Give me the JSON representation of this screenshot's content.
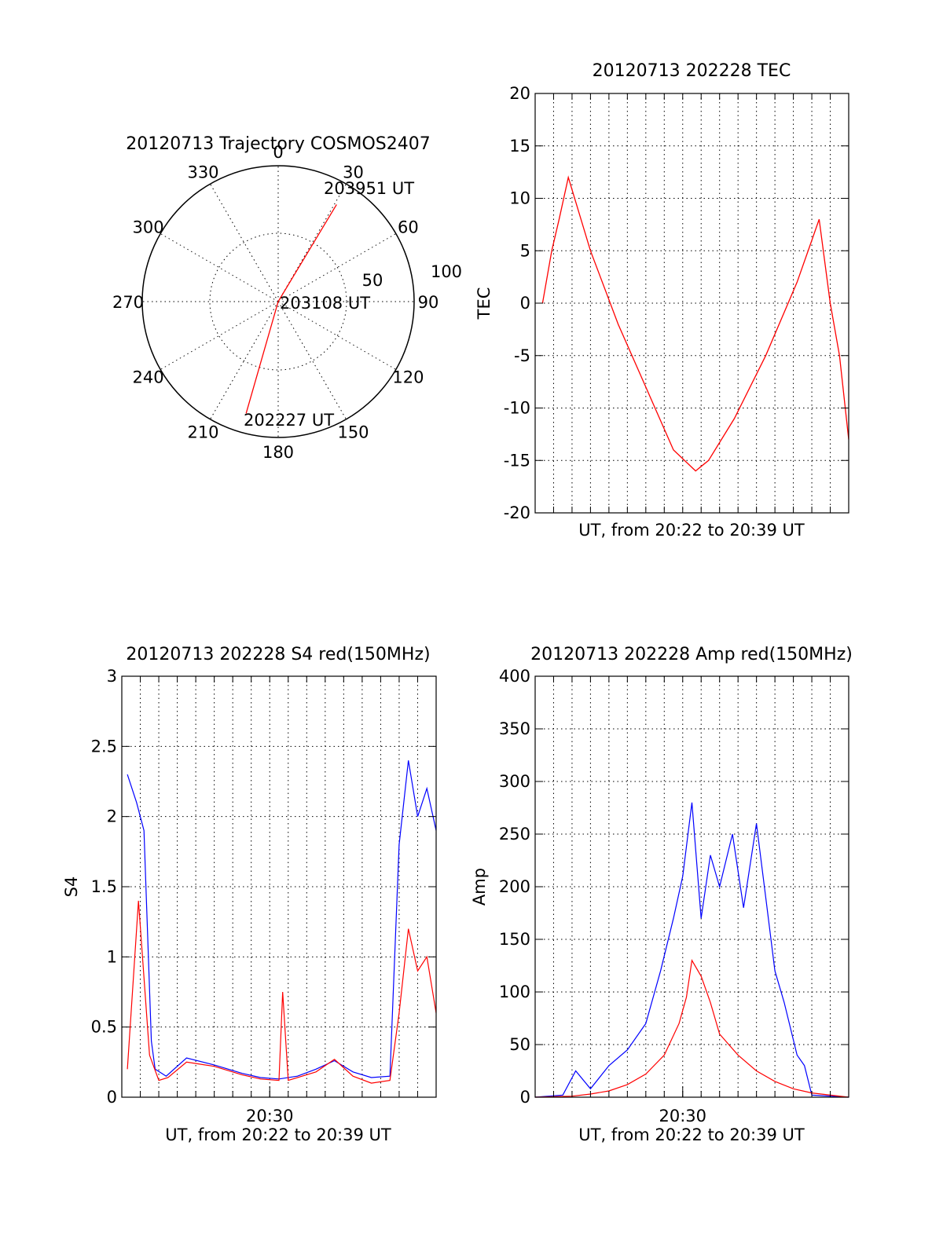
{
  "colors": {
    "primary": "#ff0000",
    "secondary": "#0000ff",
    "axes": "#000000"
  },
  "chart_data": [
    {
      "id": "trajectory",
      "type": "scatter",
      "title": "20120713 Trajectory COSMOS2407",
      "projection": "polar",
      "azimuth_labels": [
        "0",
        "30",
        "60",
        "90",
        "120",
        "150",
        "180",
        "210",
        "240",
        "270",
        "300",
        "330"
      ],
      "radial_labels": [
        "50",
        "100"
      ],
      "series": [
        {
          "color": "#ff0000",
          "points": [
            {
              "azimuth": 196,
              "elevation": 13
            },
            {
              "azimuth": 90,
              "elevation": 90
            },
            {
              "azimuth": 31,
              "elevation": 15
            }
          ]
        }
      ],
      "annotations": [
        {
          "text": "203951 UT",
          "azimuth": 31,
          "elevation": 15
        },
        {
          "text": "203108 UT",
          "azimuth": 90,
          "elevation": 90
        },
        {
          "text": "202227 UT",
          "azimuth": 196,
          "elevation": 13
        }
      ]
    },
    {
      "id": "tec",
      "type": "line",
      "title": "20120713 202228 TEC",
      "xlabel": "UT, from 20:22 to 20:39 UT",
      "ylabel": "TEC",
      "xlim": [
        0,
        17
      ],
      "ylim": [
        -20,
        20
      ],
      "yticks": [
        "-20",
        "-15",
        "-10",
        "-5",
        "0",
        "5",
        "10",
        "15",
        "20"
      ],
      "x_minor_ticks": 17,
      "grid": true,
      "series": [
        {
          "color": "#ff0000",
          "x": [
            0.4,
            0.9,
            1.3,
            1.8,
            3.0,
            4.5,
            6.0,
            7.5,
            8.7,
            9.4,
            10.8,
            12.5,
            14.2,
            15.0,
            15.4,
            16.0,
            16.5,
            17.0
          ],
          "y": [
            0,
            5,
            8,
            12,
            5,
            -2,
            -8,
            -14,
            -16,
            -15,
            -11,
            -5,
            2,
            6,
            8,
            0,
            -5,
            -13
          ]
        }
      ]
    },
    {
      "id": "s4",
      "type": "line",
      "title": "20120713 202228 S4 red(150MHz)",
      "xlabel": "UT, from 20:22 to 20:39 UT",
      "ylabel": "S4",
      "xlim": [
        0,
        17
      ],
      "ylim": [
        0,
        3
      ],
      "yticks": [
        "0",
        "0.5",
        "1",
        "1.5",
        "2",
        "2.5",
        "3"
      ],
      "xticks": [
        {
          "value": 8,
          "label": "20:30"
        }
      ],
      "x_minor_ticks": 17,
      "grid": true,
      "series": [
        {
          "color": "#0000ff",
          "x": [
            0.3,
            0.8,
            1.2,
            1.6,
            1.8,
            2.4,
            3.5,
            5.0,
            6.5,
            7.5,
            8.5,
            9.5,
            10.5,
            11.5,
            12.5,
            13.5,
            14.5,
            15.0,
            15.5,
            16.0,
            16.5,
            17.0
          ],
          "y": [
            2.3,
            2.1,
            1.9,
            0.4,
            0.2,
            0.15,
            0.28,
            0.23,
            0.17,
            0.14,
            0.13,
            0.15,
            0.2,
            0.26,
            0.18,
            0.14,
            0.15,
            1.8,
            2.4,
            2.0,
            2.2,
            1.9
          ]
        },
        {
          "color": "#ff0000",
          "x": [
            0.3,
            0.9,
            1.5,
            2.0,
            2.5,
            3.5,
            5.0,
            6.5,
            7.5,
            8.5,
            8.7,
            9.0,
            10.5,
            11.5,
            12.5,
            13.5,
            14.5,
            15.0,
            15.5,
            16.0,
            16.5,
            17.0
          ],
          "y": [
            0.2,
            1.4,
            0.3,
            0.12,
            0.14,
            0.25,
            0.22,
            0.16,
            0.13,
            0.12,
            0.75,
            0.12,
            0.18,
            0.27,
            0.15,
            0.1,
            0.12,
            0.6,
            1.2,
            0.9,
            1.0,
            0.6
          ]
        }
      ]
    },
    {
      "id": "amp",
      "type": "line",
      "title": "20120713 202228 Amp red(150MHz)",
      "xlabel": "UT, from 20:22 to 20:39 UT",
      "ylabel": "Amp",
      "xlim": [
        0,
        17
      ],
      "ylim": [
        0,
        400
      ],
      "yticks": [
        "0",
        "50",
        "100",
        "150",
        "200",
        "250",
        "300",
        "350",
        "400"
      ],
      "xticks": [
        {
          "value": 8,
          "label": "20:30"
        }
      ],
      "x_minor_ticks": 17,
      "grid": true,
      "series": [
        {
          "color": "#0000ff",
          "x": [
            0,
            1.5,
            2.2,
            3.0,
            4.0,
            5.0,
            6.0,
            6.8,
            7.5,
            8.0,
            8.5,
            9.0,
            9.5,
            10.0,
            10.7,
            11.3,
            12.0,
            12.5,
            13.0,
            13.5,
            14.2,
            14.6,
            15.0,
            17.0
          ],
          "y": [
            0,
            2,
            25,
            8,
            30,
            45,
            70,
            120,
            170,
            210,
            280,
            170,
            230,
            200,
            250,
            180,
            260,
            190,
            120,
            90,
            40,
            30,
            2,
            0
          ]
        },
        {
          "color": "#ff0000",
          "x": [
            0,
            2.0,
            3.0,
            4.0,
            5.0,
            6.0,
            7.0,
            7.8,
            8.2,
            8.5,
            9.0,
            9.5,
            10.0,
            11.0,
            12.0,
            13.0,
            14.0,
            15.0,
            17.0
          ],
          "y": [
            0,
            1,
            3,
            6,
            12,
            22,
            40,
            70,
            95,
            130,
            115,
            90,
            60,
            40,
            25,
            15,
            8,
            4,
            0
          ]
        }
      ]
    }
  ]
}
